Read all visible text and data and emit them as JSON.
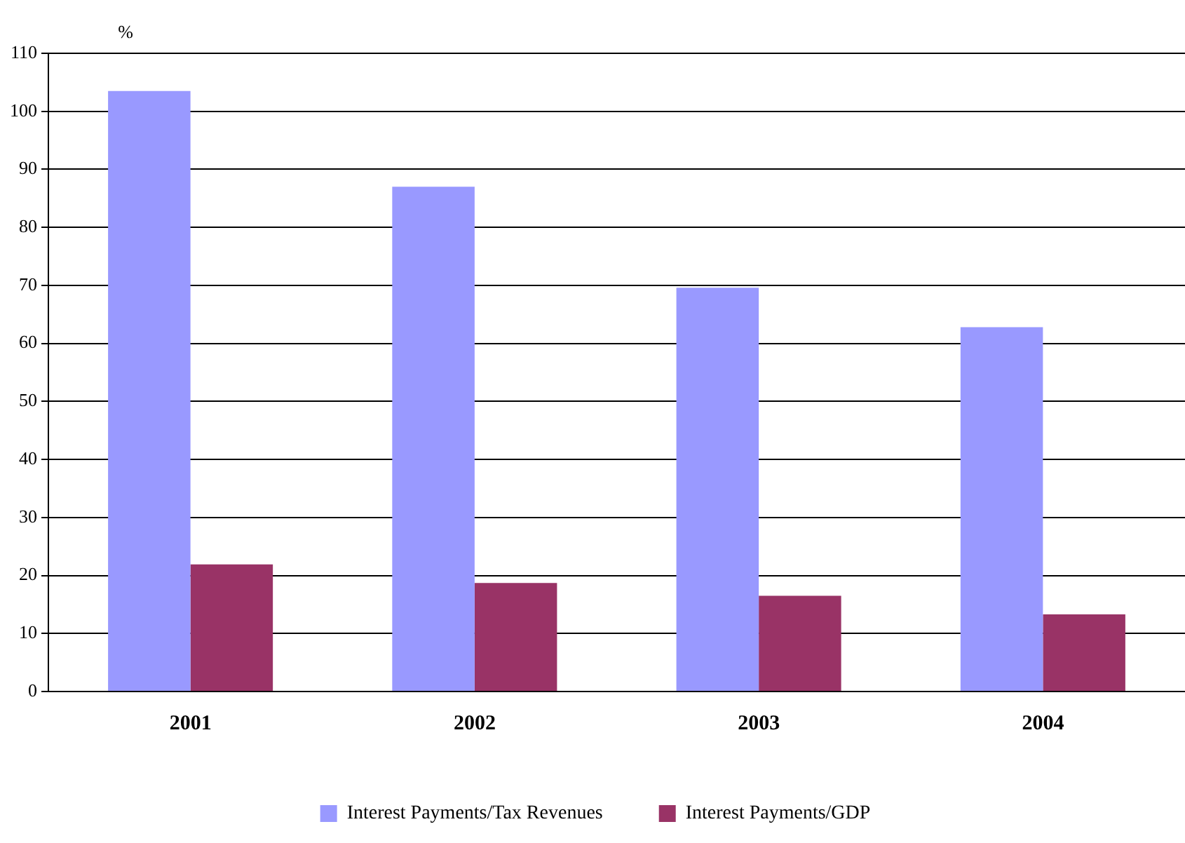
{
  "chart_data": {
    "type": "bar",
    "ylabel": "%",
    "categories": [
      "2001",
      "2002",
      "2003",
      "2004"
    ],
    "series": [
      {
        "name": "Interest Payments/Tax Revenues",
        "color": "#9999ff",
        "values": [
          103.5,
          87,
          69.6,
          62.8
        ]
      },
      {
        "name": "Interest Payments/GDP",
        "color": "#993366",
        "values": [
          21.9,
          18.7,
          16.5,
          13.3
        ]
      }
    ],
    "ylim": [
      0,
      110
    ],
    "yticks": [
      0,
      10,
      20,
      30,
      40,
      50,
      60,
      70,
      80,
      90,
      100,
      110
    ],
    "grid": "y",
    "legend": "bottom"
  }
}
